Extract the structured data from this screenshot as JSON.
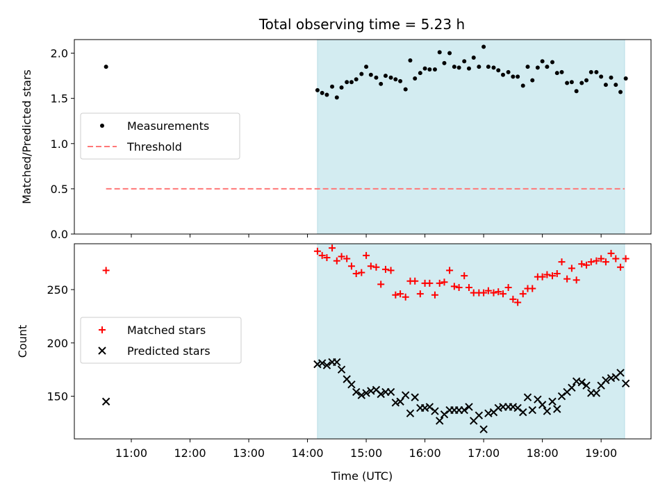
{
  "chart_data": {
    "type": "scatter",
    "title": "Total observing time = 5.23 h",
    "xlabel": "Time (UTC)",
    "x_ticks": [
      "11:00",
      "12:00",
      "13:00",
      "14:00",
      "15:00",
      "16:00",
      "17:00",
      "18:00",
      "19:00"
    ],
    "x_tick_hours": [
      11,
      12,
      13,
      14,
      15,
      16,
      17,
      18,
      19
    ],
    "xlim": [
      10.03,
      19.85
    ],
    "observing_window": [
      14.17,
      19.4
    ],
    "colors": {
      "window": "#d3ecf1",
      "measurements": "#000000",
      "threshold": "#ff7777",
      "matched": "#ff0000",
      "predicted": "#000000"
    },
    "panels": [
      {
        "ylabel": "Matched/Predicted stars",
        "ylim": [
          0,
          2.15
        ],
        "y_ticks": [
          "0.0",
          "0.5",
          "1.0",
          "1.5",
          "2.0"
        ],
        "y_tick_values": [
          0,
          0.5,
          1.0,
          1.5,
          2.0
        ],
        "legend": {
          "position": "center-left",
          "entries": [
            {
              "label": "Measurements",
              "marker": "dot"
            },
            {
              "label": "Threshold",
              "marker": "dashed-line"
            }
          ]
        },
        "threshold": {
          "value": 0.5,
          "x_range": [
            10.57,
            19.4
          ]
        },
        "series": [
          {
            "name": "Measurements",
            "x": [
              10.57,
              14.17,
              14.25,
              14.33,
              14.42,
              14.5,
              14.58,
              14.67,
              14.75,
              14.83,
              14.92,
              15.0,
              15.08,
              15.17,
              15.25,
              15.33,
              15.42,
              15.5,
              15.58,
              15.67,
              15.75,
              15.83,
              15.92,
              16.0,
              16.08,
              16.17,
              16.25,
              16.33,
              16.42,
              16.5,
              16.58,
              16.67,
              16.75,
              16.83,
              16.92,
              17.0,
              17.08,
              17.17,
              17.25,
              17.33,
              17.42,
              17.5,
              17.58,
              17.67,
              17.75,
              17.83,
              17.92,
              18.0,
              18.08,
              18.17,
              18.25,
              18.33,
              18.42,
              18.5,
              18.58,
              18.67,
              18.75,
              18.83,
              18.92,
              19.0,
              19.08,
              19.17,
              19.25,
              19.33,
              19.42
            ],
            "y": [
              1.85,
              1.59,
              1.56,
              1.54,
              1.63,
              1.51,
              1.62,
              1.68,
              1.68,
              1.71,
              1.77,
              1.85,
              1.76,
              1.73,
              1.66,
              1.75,
              1.73,
              1.71,
              1.69,
              1.6,
              1.92,
              1.72,
              1.78,
              1.83,
              1.82,
              1.82,
              2.01,
              1.89,
              2.0,
              1.85,
              1.84,
              1.91,
              1.83,
              1.95,
              1.85,
              2.07,
              1.85,
              1.84,
              1.81,
              1.76,
              1.79,
              1.74,
              1.74,
              1.64,
              1.85,
              1.7,
              1.84,
              1.91,
              1.85,
              1.9,
              1.78,
              1.79,
              1.67,
              1.68,
              1.58,
              1.67,
              1.7,
              1.79,
              1.79,
              1.74,
              1.65,
              1.73,
              1.65,
              1.57,
              1.72
            ]
          }
        ]
      },
      {
        "ylabel": "Count",
        "ylim": [
          110,
          293
        ],
        "y_ticks": [
          "150",
          "200",
          "250"
        ],
        "y_tick_values": [
          150,
          200,
          250
        ],
        "legend": {
          "position": "center-left",
          "entries": [
            {
              "label": "Matched stars",
              "marker": "plus"
            },
            {
              "label": "Predicted stars",
              "marker": "x"
            }
          ]
        },
        "series": [
          {
            "name": "Matched stars",
            "x": [
              10.57,
              14.17,
              14.25,
              14.33,
              14.42,
              14.5,
              14.58,
              14.67,
              14.75,
              14.83,
              14.92,
              15.0,
              15.08,
              15.17,
              15.25,
              15.33,
              15.42,
              15.5,
              15.58,
              15.67,
              15.75,
              15.83,
              15.92,
              16.0,
              16.08,
              16.17,
              16.25,
              16.33,
              16.42,
              16.5,
              16.58,
              16.67,
              16.75,
              16.83,
              16.92,
              17.0,
              17.08,
              17.17,
              17.25,
              17.33,
              17.42,
              17.5,
              17.58,
              17.67,
              17.75,
              17.83,
              17.92,
              18.0,
              18.08,
              18.17,
              18.25,
              18.33,
              18.42,
              18.5,
              18.58,
              18.67,
              18.75,
              18.83,
              18.92,
              19.0,
              19.08,
              19.17,
              19.25,
              19.33,
              19.42
            ],
            "y": [
              268,
              286,
              282,
              280,
              289,
              277,
              281,
              279,
              272,
              265,
              266,
              282,
              272,
              271,
              255,
              269,
              268,
              245,
              246,
              243,
              258,
              258,
              246,
              256,
              256,
              245,
              256,
              257,
              268,
              253,
              252,
              263,
              252,
              247,
              247,
              247,
              249,
              247,
              248,
              246,
              252,
              241,
              238,
              246,
              251,
              251,
              262,
              262,
              264,
              263,
              265,
              276,
              260,
              270,
              259,
              274,
              273,
              276,
              277,
              279,
              276,
              284,
              279,
              271,
              279
            ]
          },
          {
            "name": "Predicted stars",
            "x": [
              10.57,
              14.17,
              14.25,
              14.33,
              14.42,
              14.5,
              14.58,
              14.67,
              14.75,
              14.83,
              14.92,
              15.0,
              15.08,
              15.17,
              15.25,
              15.33,
              15.42,
              15.5,
              15.58,
              15.67,
              15.75,
              15.83,
              15.92,
              16.0,
              16.08,
              16.17,
              16.25,
              16.33,
              16.42,
              16.5,
              16.58,
              16.67,
              16.75,
              16.83,
              16.92,
              17.0,
              17.08,
              17.17,
              17.25,
              17.33,
              17.42,
              17.5,
              17.58,
              17.67,
              17.75,
              17.83,
              17.92,
              18.0,
              18.08,
              18.17,
              18.25,
              18.33,
              18.42,
              18.5,
              18.58,
              18.67,
              18.75,
              18.83,
              18.92,
              19.0,
              19.08,
              19.17,
              19.25,
              19.33,
              19.42
            ],
            "y": [
              145,
              180,
              181,
              179,
              182,
              182,
              175,
              166,
              161,
              154,
              151,
              153,
              155,
              156,
              152,
              154,
              154,
              144,
              145,
              151,
              134,
              149,
              139,
              139,
              140,
              136,
              127,
              133,
              137,
              137,
              137,
              137,
              140,
              127,
              132,
              119,
              134,
              135,
              139,
              140,
              140,
              140,
              139,
              135,
              149,
              137,
              147,
              142,
              136,
              145,
              138,
              150,
              154,
              158,
              164,
              163,
              160,
              153,
              153,
              160,
              165,
              167,
              168,
              172,
              162
            ]
          }
        ]
      }
    ]
  }
}
